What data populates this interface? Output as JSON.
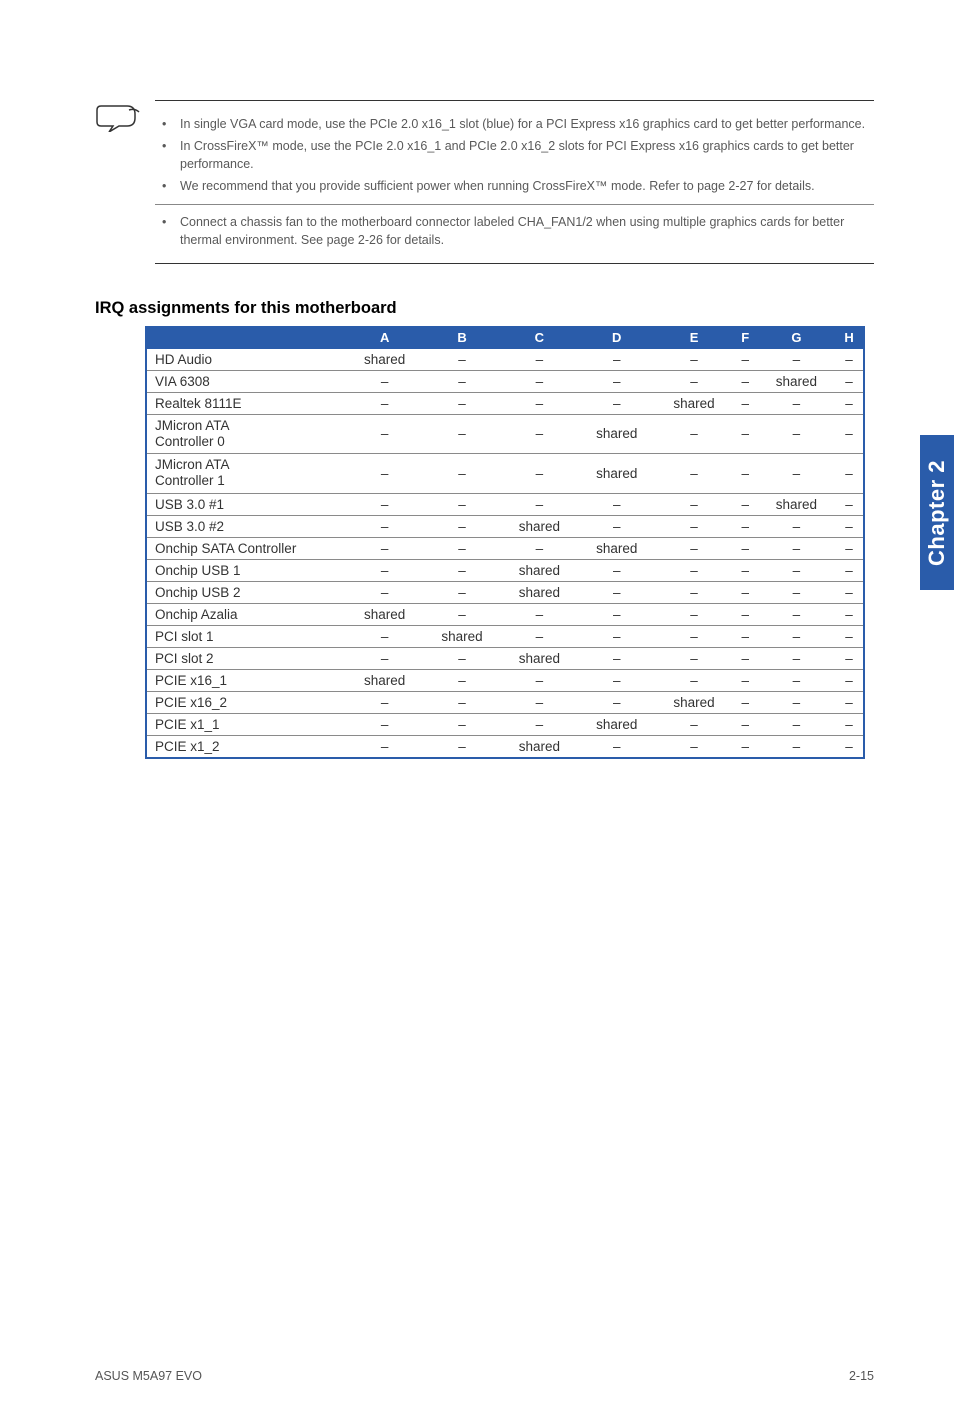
{
  "notes": [
    "In single VGA card mode, use the PCIe 2.0 x16_1 slot (blue) for a PCI Express x16 graphics card to get better performance.",
    "In CrossFireX™ mode, use the PCIe 2.0 x16_1 and PCIe 2.0 x16_2 slots for PCI Express x16 graphics cards to get better performance.",
    "We recommend that you provide sufficient power when running CrossFireX™ mode. Refer to page 2-27 for details.",
    "Connect a chassis fan to the motherboard connector labeled CHA_FAN1/2 when using multiple graphics cards for better thermal environment. See page 2-26 for details."
  ],
  "section_heading": "IRQ assignments for this motherboard",
  "table": {
    "columns": [
      "",
      "A",
      "B",
      "C",
      "D",
      "E",
      "F",
      "G",
      "H"
    ],
    "rows": [
      {
        "label": "HD Audio",
        "cells": [
          "shared",
          "–",
          "–",
          "–",
          "–",
          "–",
          "–",
          "–"
        ]
      },
      {
        "label": "VIA 6308",
        "cells": [
          "–",
          "–",
          "–",
          "–",
          "–",
          "–",
          "shared",
          "–"
        ]
      },
      {
        "label": "Realtek 8111E",
        "cells": [
          "–",
          "–",
          "–",
          "–",
          "shared",
          "–",
          "–",
          "–"
        ]
      },
      {
        "label": "JMicron ATA\nController 0",
        "cells": [
          "–",
          "–",
          "–",
          "shared",
          "–",
          "–",
          "–",
          "–"
        ],
        "twoLine": true
      },
      {
        "label": "JMicron ATA\nController 1",
        "cells": [
          "–",
          "–",
          "–",
          "shared",
          "–",
          "–",
          "–",
          "–"
        ],
        "twoLine": true
      },
      {
        "label": "USB 3.0 #1",
        "cells": [
          "–",
          "–",
          "–",
          "–",
          "–",
          "–",
          "shared",
          "–"
        ]
      },
      {
        "label": "USB 3.0 #2",
        "cells": [
          "–",
          "–",
          "shared",
          "–",
          "–",
          "–",
          "–",
          "–"
        ]
      },
      {
        "label": "Onchip SATA Controller",
        "cells": [
          "–",
          "–",
          "–",
          "shared",
          "–",
          "–",
          "–",
          "–"
        ]
      },
      {
        "label": "Onchip USB 1",
        "cells": [
          "–",
          "–",
          "shared",
          "–",
          "–",
          "–",
          "–",
          "–"
        ]
      },
      {
        "label": "Onchip USB 2",
        "cells": [
          "–",
          "–",
          "shared",
          "–",
          "–",
          "–",
          "–",
          "–"
        ]
      },
      {
        "label": "Onchip Azalia",
        "cells": [
          "shared",
          "–",
          "–",
          "–",
          "–",
          "–",
          "–",
          "–"
        ]
      },
      {
        "label": "PCI slot 1",
        "cells": [
          "–",
          "shared",
          "–",
          "–",
          "–",
          "–",
          "–",
          "–"
        ]
      },
      {
        "label": "PCI slot 2",
        "cells": [
          "–",
          "–",
          "shared",
          "–",
          "–",
          "–",
          "–",
          "–"
        ]
      },
      {
        "label": "PCIE x16_1",
        "cells": [
          "shared",
          "–",
          "–",
          "–",
          "–",
          "–",
          "–",
          "–"
        ]
      },
      {
        "label": "PCIE x16_2",
        "cells": [
          "–",
          "–",
          "–",
          "–",
          "shared",
          "–",
          "–",
          "–"
        ]
      },
      {
        "label": "PCIE x1_1",
        "cells": [
          "–",
          "–",
          "–",
          "shared",
          "–",
          "–",
          "–",
          "–"
        ]
      },
      {
        "label": "PCIE x1_2",
        "cells": [
          "–",
          "–",
          "shared",
          "–",
          "–",
          "–",
          "–",
          "–"
        ]
      }
    ]
  },
  "chapter_tab": "Chapter 2",
  "footer_left": "ASUS M5A97 EVO",
  "footer_right": "2-15",
  "colors": {
    "brand_blue": "#2a5caa",
    "note_text": "#595959",
    "cell_text": "#333333",
    "divider": "#8a8a8a"
  }
}
